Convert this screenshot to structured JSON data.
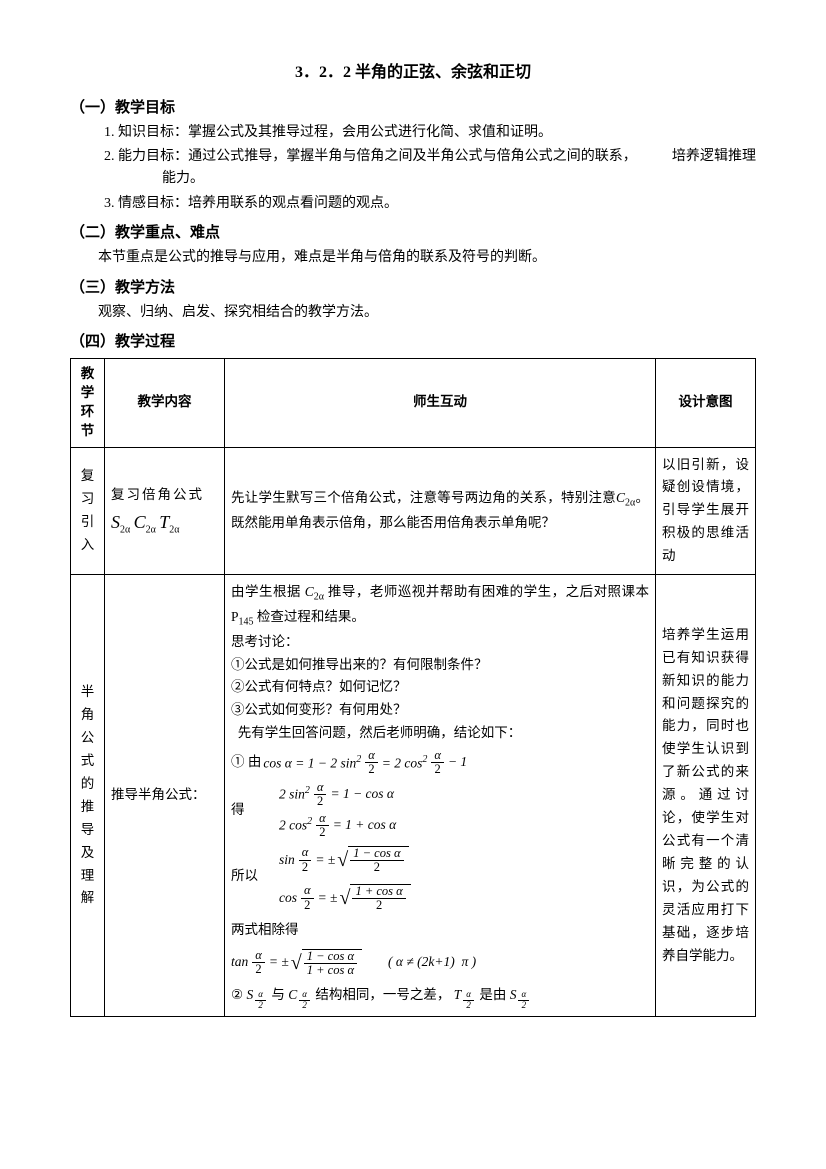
{
  "title": "3．2．2 半角的正弦、余弦和正切",
  "sections": {
    "s1": {
      "heading": "（一）教学目标",
      "goals": [
        "知识目标：掌握公式及其推导过程，会用公式进行化简、求值和证明。",
        "能力目标：通过公式推导，掌握半角与倍角之间及半角公式与倍角公式之间的联系，　　　培养逻辑推理能力。",
        "情感目标：培养用联系的观点看问题的观点。"
      ]
    },
    "s2": {
      "heading": "（二）教学重点、难点",
      "body": "本节重点是公式的推导与应用，难点是半角与倍角的联系及符号的判断。"
    },
    "s3": {
      "heading": "（三）教学方法",
      "body": "观察、归纳、启发、探究相结合的教学方法。"
    },
    "s4": {
      "heading": "（四）教学过程"
    }
  },
  "table": {
    "headers": {
      "phase": "教学环节",
      "content": "教学内容",
      "interact": "师生互动",
      "design": "设计意图"
    },
    "row1": {
      "phase": "复习引入",
      "content_prefix": "复习倍角公式",
      "sym_S": "S",
      "sym_C": "C",
      "sym_T": "T",
      "sub_2a": "2α",
      "interact_1": "先让学生默写三个倍角公式，注意等号两边角的关系，特别注意",
      "interact_sym": "C",
      "interact_sub": "2α",
      "interact_2": "。既然能用单角表示倍角，那么能否用倍角表示单角呢？",
      "design": "以旧引新，设疑创设情境，引导学生展开积极的思维活动"
    },
    "row2": {
      "phase": "半角公式的推导及理解",
      "content": "推导半角公式：",
      "i1a": "由学生根据 ",
      "i1_sym": "C",
      "i1_sub": "2α",
      "i1b": " 推导，老师巡视并帮助有困难的学生，之后对照课本 P",
      "i1_pg": "145",
      "i1c": " 检查过程和结果。",
      "i2": "思考讨论：",
      "i3": "①公式是如何推导出来的？有何限制条件？",
      "i4": "②公式有何特点？如何记忆？",
      "i5": "③公式如何变形？有何用处？",
      "i6": "先有学生回答问题，然后老师明确，结论如下：",
      "m1_label": "① 由",
      "m1": "cos α = 1 − 2 sin² (α/2) = 2 cos² (α/2) − 1",
      "m_get": "得",
      "m2": "2 sin² (α/2) = 1 − cos α",
      "m3": "2 cos² (α/2) = 1 + cos α",
      "m_so": "所以",
      "m4": "sin (α/2) = ± √((1 − cos α)/2)",
      "m5": "cos (α/2) = ± √((1 + cos α)/2)",
      "m_div": "两式相除得",
      "m6": "tan (α/2) = ± √((1 − cos α)/(1 + cos α))",
      "m6_cond": "（α ≠ (2k+1)π）",
      "i_last_a": "②",
      "i_last_b": "与",
      "i_last_c": "结构相同，一号之差，",
      "i_last_d": "是由",
      "sym_half": "α/2",
      "design": "培养学生运用已有知识获得新知识的能力和问题探究的能力，同时也使学生认识到了新公式的来源。通过讨论，使学生对公式有一个清晰完整的认识，为公式的灵活应用打下基础，逐步培养自学能力。"
    }
  }
}
